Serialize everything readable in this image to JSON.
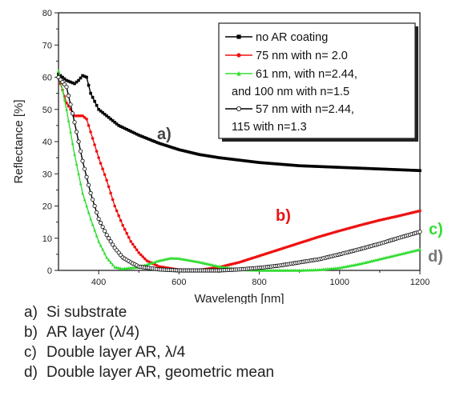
{
  "chart_data": {
    "type": "line",
    "xlabel": "Wavelength [nm]",
    "ylabel": "Reflectance [%]",
    "xlim": [
      300,
      1200
    ],
    "ylim": [
      0,
      80
    ],
    "xticks": [
      400,
      600,
      800,
      1000,
      1200
    ],
    "yticks": [
      0,
      10,
      20,
      30,
      40,
      50,
      60,
      70,
      80
    ],
    "grid": false,
    "legend_position": "top-right",
    "series": [
      {
        "name": "no AR coating",
        "color": "#000000",
        "marker": "square",
        "points": [
          [
            300,
            61
          ],
          [
            320,
            59
          ],
          [
            340,
            58
          ],
          [
            350,
            59
          ],
          [
            360,
            60.5
          ],
          [
            370,
            60
          ],
          [
            380,
            55
          ],
          [
            400,
            50
          ],
          [
            450,
            45
          ],
          [
            500,
            42
          ],
          [
            550,
            39.5
          ],
          [
            600,
            37.5
          ],
          [
            650,
            36
          ],
          [
            700,
            35
          ],
          [
            800,
            33.5
          ],
          [
            900,
            32.5
          ],
          [
            1000,
            32
          ],
          [
            1100,
            31.5
          ],
          [
            1200,
            31
          ]
        ]
      },
      {
        "name": "75 nm with n= 2.0",
        "color": "#ee1111",
        "marker": "circle",
        "points": [
          [
            300,
            60
          ],
          [
            320,
            52
          ],
          [
            340,
            48
          ],
          [
            350,
            48
          ],
          [
            360,
            48
          ],
          [
            370,
            47
          ],
          [
            380,
            43
          ],
          [
            400,
            35
          ],
          [
            420,
            28
          ],
          [
            440,
            20
          ],
          [
            460,
            14
          ],
          [
            480,
            9
          ],
          [
            500,
            5.5
          ],
          [
            520,
            3
          ],
          [
            550,
            1.2
          ],
          [
            600,
            0.2
          ],
          [
            650,
            0.1
          ],
          [
            700,
            1
          ],
          [
            750,
            2.5
          ],
          [
            800,
            4.5
          ],
          [
            850,
            6.5
          ],
          [
            900,
            8.5
          ],
          [
            950,
            10.5
          ],
          [
            1000,
            12.3
          ],
          [
            1050,
            14
          ],
          [
            1100,
            15.6
          ],
          [
            1150,
            17
          ],
          [
            1200,
            18.5
          ]
        ]
      },
      {
        "name": "61 nm, with n=2.44, and 100 nm with n=1.5",
        "color": "#33dd33",
        "marker": "triangle",
        "points": [
          [
            300,
            62
          ],
          [
            320,
            50
          ],
          [
            340,
            36
          ],
          [
            360,
            24
          ],
          [
            380,
            16
          ],
          [
            400,
            9
          ],
          [
            420,
            4
          ],
          [
            440,
            1
          ],
          [
            460,
            0.5
          ],
          [
            500,
            1
          ],
          [
            550,
            3
          ],
          [
            580,
            3.8
          ],
          [
            600,
            3.7
          ],
          [
            650,
            2.6
          ],
          [
            700,
            1.2
          ],
          [
            750,
            0.3
          ],
          [
            800,
            0
          ],
          [
            850,
            0
          ],
          [
            900,
            0
          ],
          [
            950,
            0.2
          ],
          [
            1000,
            0.8
          ],
          [
            1050,
            2
          ],
          [
            1100,
            3.5
          ],
          [
            1150,
            5
          ],
          [
            1200,
            6.5
          ]
        ]
      },
      {
        "name": "57 nm with n=2.44, 115 with n=1.3",
        "color": "#000000",
        "marker": "open-circle",
        "points": [
          [
            300,
            60
          ],
          [
            320,
            57
          ],
          [
            340,
            46
          ],
          [
            360,
            34
          ],
          [
            380,
            24
          ],
          [
            400,
            16
          ],
          [
            420,
            11
          ],
          [
            440,
            7
          ],
          [
            460,
            4
          ],
          [
            480,
            2.5
          ],
          [
            500,
            1.2
          ],
          [
            550,
            0.3
          ],
          [
            600,
            0
          ],
          [
            650,
            0
          ],
          [
            700,
            0
          ],
          [
            750,
            0.3
          ],
          [
            800,
            0.8
          ],
          [
            850,
            1.5
          ],
          [
            900,
            2.5
          ],
          [
            950,
            3.5
          ],
          [
            1000,
            5
          ],
          [
            1050,
            6.6
          ],
          [
            1100,
            8.3
          ],
          [
            1150,
            10.2
          ],
          [
            1200,
            12
          ]
        ]
      }
    ],
    "annotations": [
      {
        "text": "a)",
        "color": "#444444"
      },
      {
        "text": "b)",
        "color": "#ee1111"
      },
      {
        "text": "c)",
        "color": "#33dd33"
      },
      {
        "text": "d)",
        "color": "#777777"
      }
    ],
    "legend_labels": {
      "l1": "no AR coating",
      "l2": "75 nm with n= 2.0",
      "l3a": "61 nm, with n=2.44,",
      "l3b": "and 100 nm with n=1.5",
      "l4a": "57 nm with n=2.44,",
      "l4b": "115 with n=1.3"
    }
  },
  "notes": [
    {
      "key": "a)",
      "text": "Si substrate"
    },
    {
      "key": "b)",
      "text": "AR layer (λ/4)"
    },
    {
      "key": "c)",
      "text": "Double layer AR, λ/4"
    },
    {
      "key": "d)",
      "text": "Double layer AR, geometric mean"
    }
  ]
}
